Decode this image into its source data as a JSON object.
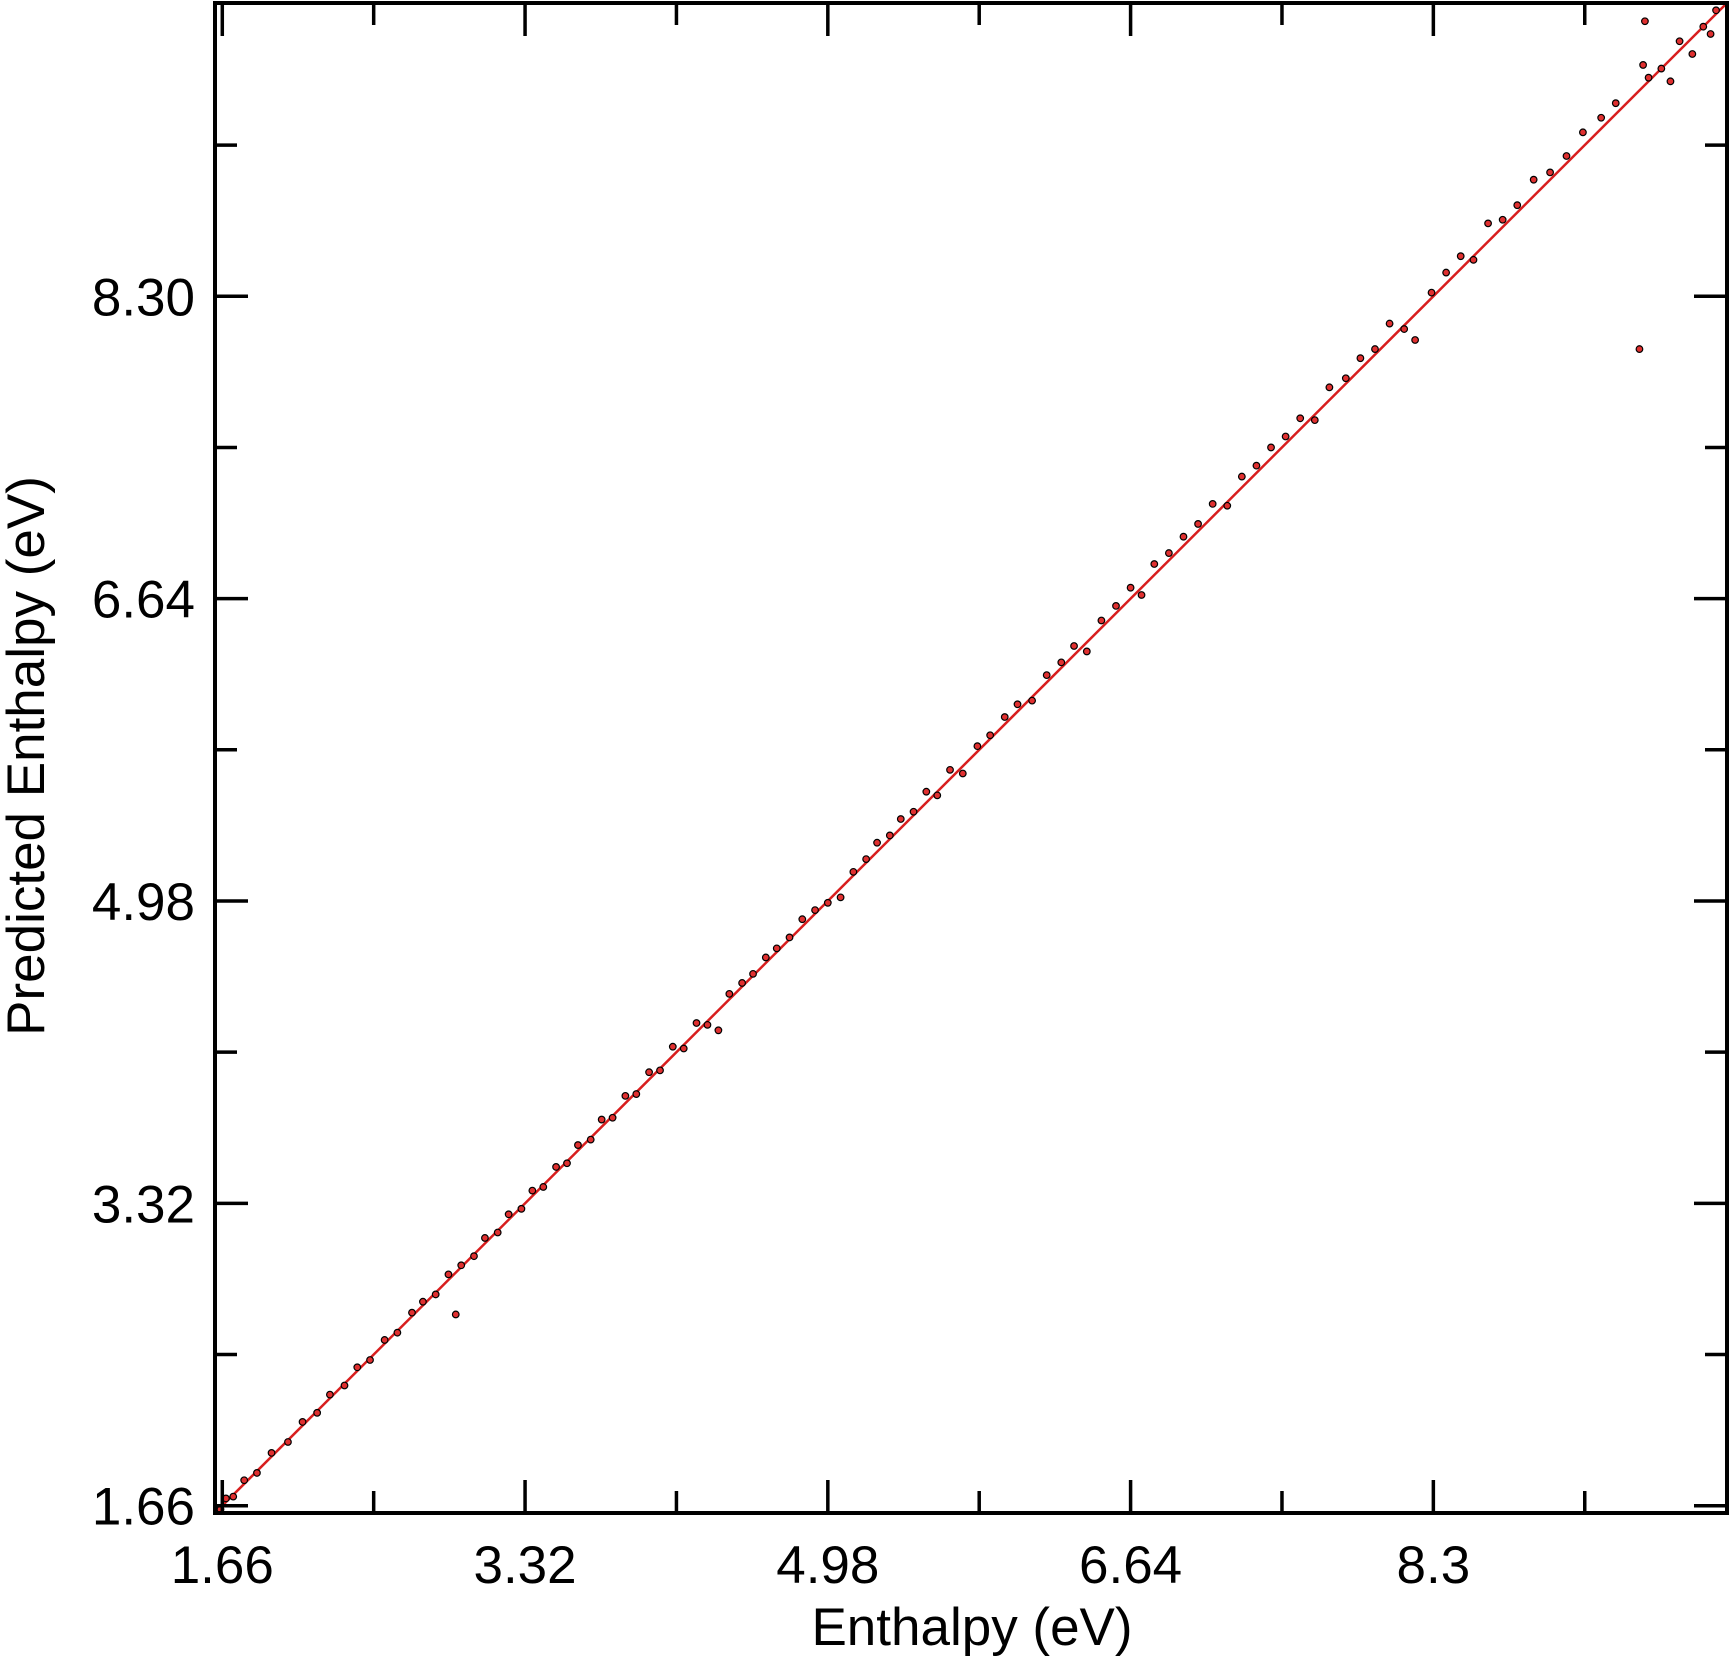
{
  "chart_data": {
    "type": "scatter",
    "x_label": "Enthalpy (eV)",
    "y_label": "Predicted Enthalpy (eV)",
    "xlim": [
      1.62,
      9.91
    ],
    "ylim": [
      1.62,
      9.91
    ],
    "xticks": [
      1.66,
      3.32,
      4.98,
      6.64,
      8.3
    ],
    "yticks": [
      1.66,
      3.32,
      4.98,
      6.64,
      {
        "value": 8.3,
        "label": "8.30"
      }
    ],
    "xminorticks": [
      2.49,
      4.15,
      5.81,
      7.47,
      9.13
    ],
    "yminorticks": [
      2.49,
      4.15,
      5.81,
      7.47,
      9.13
    ],
    "color": "#e03030",
    "x": [
      1.65,
      1.68,
      1.72,
      1.78,
      1.85,
      1.93,
      2.02,
      2.1,
      2.18,
      2.25,
      2.33,
      2.4,
      2.47,
      2.55,
      2.62,
      2.7,
      2.76,
      2.83,
      2.9,
      2.94,
      2.97,
      3.04,
      3.1,
      3.17,
      3.23,
      3.3,
      3.36,
      3.42,
      3.49,
      3.55,
      3.61,
      3.68,
      3.74,
      3.8,
      3.87,
      3.93,
      4.0,
      4.06,
      4.13,
      4.19,
      4.26,
      4.32,
      4.38,
      4.44,
      4.51,
      4.57,
      4.64,
      4.7,
      4.77,
      4.84,
      4.91,
      4.98,
      5.05,
      5.12,
      5.19,
      5.25,
      5.32,
      5.38,
      5.45,
      5.52,
      5.58,
      5.65,
      5.72,
      5.8,
      5.87,
      5.95,
      6.02,
      6.1,
      6.18,
      6.26,
      6.33,
      6.4,
      6.48,
      6.56,
      6.64,
      6.7,
      6.77,
      6.85,
      6.93,
      7.01,
      7.09,
      7.17,
      7.25,
      7.33,
      7.41,
      7.49,
      7.57,
      7.65,
      7.73,
      7.82,
      7.9,
      7.98,
      8.06,
      8.14,
      8.2,
      8.29,
      8.37,
      8.45,
      8.52,
      8.6,
      8.68,
      8.76,
      8.85,
      8.94,
      9.03,
      9.12,
      9.22,
      9.3,
      9.43,
      9.45,
      9.48,
      9.46,
      9.55,
      9.6,
      9.65,
      9.72,
      9.78,
      9.82,
      9.85
    ],
    "values": [
      1.64,
      1.7,
      1.71,
      1.8,
      1.84,
      1.95,
      2.01,
      2.12,
      2.17,
      2.27,
      2.32,
      2.42,
      2.46,
      2.57,
      2.61,
      2.72,
      2.78,
      2.82,
      2.93,
      2.71,
      2.98,
      3.03,
      3.13,
      3.16,
      3.26,
      3.29,
      3.39,
      3.41,
      3.52,
      3.54,
      3.64,
      3.67,
      3.78,
      3.79,
      3.91,
      3.92,
      4.04,
      4.05,
      4.18,
      4.17,
      4.31,
      4.3,
      4.27,
      4.47,
      4.53,
      4.58,
      4.67,
      4.72,
      4.78,
      4.88,
      4.93,
      4.97,
      5.0,
      5.14,
      5.21,
      5.3,
      5.34,
      5.43,
      5.47,
      5.58,
      5.56,
      5.7,
      5.68,
      5.83,
      5.89,
      5.99,
      6.06,
      6.08,
      6.22,
      6.29,
      6.38,
      6.35,
      6.52,
      6.6,
      6.7,
      6.66,
      6.83,
      6.89,
      6.98,
      7.05,
      7.16,
      7.15,
      7.31,
      7.37,
      7.47,
      7.53,
      7.63,
      7.62,
      7.8,
      7.85,
      7.96,
      8.01,
      8.15,
      8.12,
      8.06,
      8.32,
      8.43,
      8.52,
      8.5,
      8.7,
      8.72,
      8.8,
      8.94,
      8.98,
      9.07,
      9.2,
      9.28,
      9.36,
      8.01,
      9.57,
      9.5,
      9.81,
      9.55,
      9.48,
      9.7,
      9.63,
      9.78,
      9.74,
      9.87
    ],
    "fit_line": {
      "x": [
        1.62,
        9.91
      ],
      "y": [
        1.62,
        9.91
      ],
      "color": "#d81e1e"
    }
  }
}
